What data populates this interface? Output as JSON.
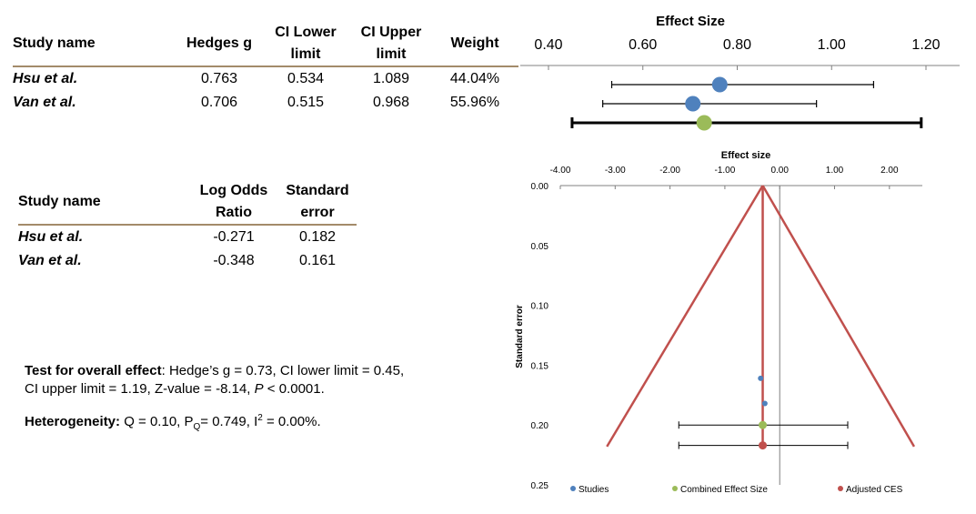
{
  "table1": {
    "headers": {
      "study": "Study name",
      "hedges": "Hedges g",
      "ci_lower": [
        "CI Lower",
        "limit"
      ],
      "ci_upper": [
        "CI Upper",
        "limit"
      ],
      "weight": "Weight"
    },
    "rows": [
      {
        "study": "Hsu et al.",
        "hedges": "0.763",
        "lower": "0.534",
        "upper": "1.089",
        "weight": "44.04%"
      },
      {
        "study": "Van et al.",
        "hedges": "0.706",
        "lower": "0.515",
        "upper": "0.968",
        "weight": "55.96%"
      }
    ]
  },
  "table2": {
    "headers": {
      "study": "Study name",
      "lor": [
        "Log Odds",
        "Ratio"
      ],
      "se": [
        "Standard",
        "error"
      ]
    },
    "rows": [
      {
        "study": "Hsu et al.",
        "lor": "-0.271",
        "se": "0.182"
      },
      {
        "study": "Van et al.",
        "lor": "-0.348",
        "se": "0.161"
      }
    ]
  },
  "notes": {
    "overall_label": "Test for overall effect",
    "overall_text_1": ": Hedge’s g = 0.73, CI lower limit = 0.45,",
    "overall_text_2a": "CI upper limit  = 1.19, Z-value = -8.14, ",
    "overall_p": "P",
    "overall_text_2b": " < 0.0001.",
    "het_label": "Heterogeneity:",
    "het_text_1": " Q = 0.10, P",
    "het_sub": "Q",
    "het_text_2": "=  0.749, I",
    "het_sup": "2",
    "het_text_3": " = 0.00%."
  },
  "chart_data": [
    {
      "type": "forest",
      "title": "Effect Size",
      "xlim": [
        0.4,
        1.2
      ],
      "ticks": [
        "0.40",
        "0.60",
        "0.80",
        "1.00",
        "1.20"
      ],
      "series": [
        {
          "name": "Hsu et al.",
          "value": 0.763,
          "lower": 0.534,
          "upper": 1.089,
          "color": "#4f81bd"
        },
        {
          "name": "Van et al.",
          "value": 0.706,
          "lower": 0.515,
          "upper": 0.968,
          "color": "#4f81bd"
        },
        {
          "name": "Combined",
          "value": 0.73,
          "lower": 0.45,
          "upper": 1.19,
          "color": "#9bbb59"
        }
      ]
    },
    {
      "type": "scatter",
      "title": "Effect size",
      "xlabel": "",
      "ylabel": "Standard error",
      "xlim": [
        -4.0,
        2.6
      ],
      "ylim": [
        0.0,
        0.25
      ],
      "xticks": [
        "-4.00",
        "-3.00",
        "-2.00",
        "-1.00",
        "0.00",
        "1.00",
        "2.00"
      ],
      "yticks": [
        "0.00",
        "0.05",
        "0.10",
        "0.15",
        "0.20",
        "0.25"
      ],
      "series": [
        {
          "name": "Studies",
          "color": "#4f81bd",
          "points": [
            [
              -0.348,
              0.161
            ],
            [
              -0.271,
              0.182
            ]
          ]
        },
        {
          "name": "Combined Effect Size",
          "color": "#9bbb59",
          "points": [
            [
              -0.31,
              0.2
            ]
          ],
          "ci": [
            -1.84,
            1.24
          ]
        },
        {
          "name": "Adjusted CES",
          "color": "#c0504d",
          "points": [
            [
              -0.31,
              0.217
            ]
          ],
          "ci": [
            -1.84,
            1.24
          ]
        }
      ],
      "funnel": {
        "apex": [
          -0.31,
          0.0
        ],
        "left_bottom": [
          -3.15,
          0.218
        ],
        "right_bottom": [
          2.45,
          0.218
        ],
        "color": "#c0504d"
      }
    }
  ]
}
